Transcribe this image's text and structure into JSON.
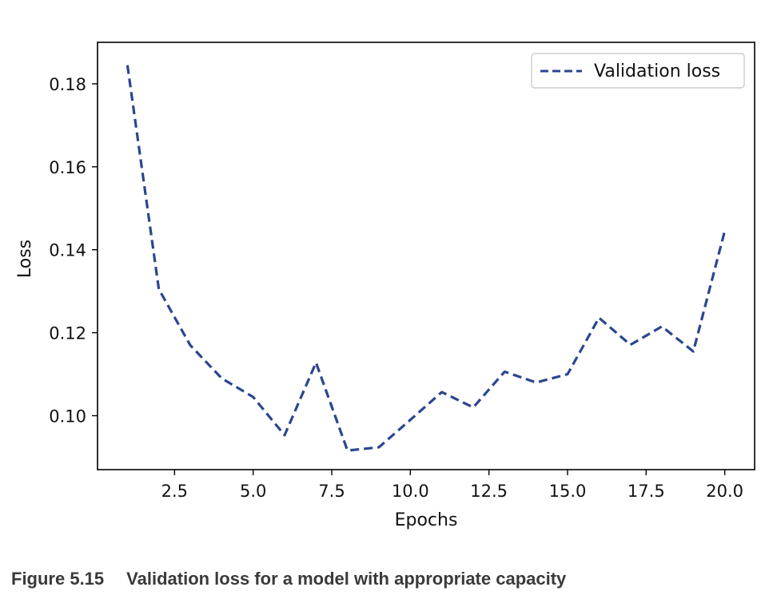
{
  "chart_data": {
    "type": "line",
    "title": "",
    "xlabel": "Epochs",
    "ylabel": "Loss",
    "xlim": [
      0.05,
      20.95
    ],
    "ylim": [
      0.087,
      0.19
    ],
    "xticks": [
      2.5,
      5.0,
      7.5,
      10.0,
      12.5,
      15.0,
      17.5,
      20.0
    ],
    "xtick_labels": [
      "2.5",
      "5.0",
      "7.5",
      "10.0",
      "12.5",
      "15.0",
      "17.5",
      "20.0"
    ],
    "yticks": [
      0.1,
      0.12,
      0.14,
      0.16,
      0.18
    ],
    "ytick_labels": [
      "0.10",
      "0.12",
      "0.14",
      "0.16",
      "0.18"
    ],
    "grid": false,
    "legend_position": "top-right",
    "series": [
      {
        "name": "Validation loss",
        "color": "#2a4690",
        "style": "dashed",
        "x": [
          1,
          2,
          3,
          4,
          5,
          6,
          7,
          8,
          9,
          10,
          11,
          12,
          13,
          14,
          15,
          16,
          17,
          18,
          19,
          20
        ],
        "y": [
          0.1845,
          0.1305,
          0.117,
          0.109,
          0.1045,
          0.0953,
          0.1128,
          0.0916,
          0.0924,
          0.099,
          0.1057,
          0.102,
          0.1106,
          0.108,
          0.11,
          0.1236,
          0.1171,
          0.1215,
          0.1155,
          0.1445
        ]
      }
    ]
  },
  "caption": {
    "figure_number": "Figure 5.15",
    "text": "Validation loss for a model with appropriate capacity"
  }
}
